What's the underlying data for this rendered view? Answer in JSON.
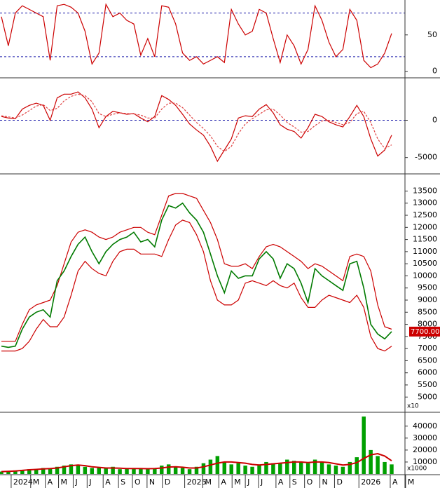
{
  "chart_data": [
    {
      "type": "line",
      "xlim": [
        0,
        56
      ],
      "ylim": [
        -8,
        96
      ],
      "yticks": [
        0,
        50
      ],
      "levels": [
        20,
        80
      ],
      "level_color": "#1a1aaa",
      "series": [
        {
          "color": "#cc0000",
          "values": [
            75,
            35,
            80,
            90,
            85,
            80,
            75,
            15,
            90,
            92,
            88,
            80,
            55,
            10,
            25,
            92,
            75,
            80,
            70,
            65,
            22,
            45,
            20,
            90,
            88,
            65,
            25,
            15,
            20,
            10,
            15,
            20,
            12,
            85,
            65,
            50,
            55,
            85,
            80,
            45,
            12,
            50,
            35,
            10,
            30,
            90,
            70,
            40,
            20,
            30,
            85,
            70,
            15,
            5,
            10,
            25,
            52
          ]
        }
      ]
    },
    {
      "type": "line",
      "xlim": [
        0,
        56
      ],
      "ylim": [
        -7100,
        5600
      ],
      "yticks": [
        0,
        -5000
      ],
      "levels": [
        0
      ],
      "level_color": "#1a1aaa",
      "series": [
        {
          "color": "#cc0000",
          "values": [
            500,
            300,
            200,
            1500,
            2000,
            2300,
            2000,
            0,
            3000,
            3500,
            3500,
            3800,
            3000,
            1500,
            -1000,
            500,
            1200,
            1000,
            800,
            900,
            300,
            -200,
            500,
            3300,
            2800,
            2000,
            800,
            -500,
            -1300,
            -2000,
            -3500,
            -5500,
            -4000,
            -2500,
            300,
            600,
            500,
            1500,
            2100,
            1000,
            -600,
            -1200,
            -1500,
            -2400,
            -1000,
            800,
            500,
            -200,
            -600,
            -900,
            500,
            2000,
            500,
            -2500,
            -4800,
            -4000,
            -2000
          ]
        },
        {
          "color": "#e04040",
          "dash": true,
          "values": [
            600,
            450,
            300,
            700,
            1300,
            1900,
            2100,
            1300,
            1600,
            2600,
            3200,
            3500,
            3300,
            2500,
            900,
            500,
            800,
            1000,
            900,
            850,
            700,
            300,
            300,
            1500,
            2300,
            2300,
            1700,
            700,
            -300,
            -1100,
            -2100,
            -3500,
            -4200,
            -3500,
            -1800,
            -500,
            200,
            800,
            1400,
            1500,
            700,
            -300,
            -900,
            -1600,
            -1500,
            -700,
            -100,
            0,
            -300,
            -600,
            -300,
            900,
            1200,
            -300,
            -2500,
            -3800,
            -3300
          ]
        }
      ]
    },
    {
      "type": "line",
      "xlim": [
        0,
        56
      ],
      "ylim": [
        4400,
        14150
      ],
      "yticks": [
        5000,
        5500,
        6000,
        6500,
        7000,
        7500,
        8000,
        8500,
        9000,
        9500,
        10000,
        10500,
        11000,
        11500,
        12000,
        12500,
        13000,
        13500
      ],
      "axis_note": "x10",
      "last_label": {
        "value": 7700,
        "label": "7700.00",
        "color": "#cc0000"
      },
      "series": [
        {
          "color": "#cc0000",
          "values": [
            7300,
            7300,
            7300,
            8000,
            8600,
            8800,
            8900,
            9000,
            9600,
            10500,
            11400,
            11800,
            11900,
            11800,
            11600,
            11500,
            11600,
            11800,
            11900,
            12000,
            12000,
            11800,
            11700,
            12500,
            13300,
            13400,
            13400,
            13300,
            13200,
            12700,
            12200,
            11500,
            10500,
            10400,
            10400,
            10500,
            10300,
            10800,
            11200,
            11300,
            11200,
            11000,
            10800,
            10600,
            10300,
            10500,
            10400,
            10200,
            10000,
            9800,
            10800,
            10900,
            10800,
            10200,
            8800,
            7900,
            7800
          ]
        },
        {
          "color": "#cc0000",
          "values": [
            6900,
            6900,
            6900,
            7000,
            7300,
            7800,
            8200,
            7900,
            7900,
            8300,
            9200,
            10200,
            10600,
            10300,
            10100,
            10000,
            10600,
            11000,
            11100,
            11100,
            10900,
            10900,
            10900,
            10800,
            11500,
            12100,
            12300,
            12200,
            11700,
            11000,
            9800,
            9000,
            8800,
            8800,
            9000,
            9700,
            9800,
            9700,
            9600,
            9800,
            9600,
            9500,
            9700,
            9100,
            8700,
            8700,
            9000,
            9200,
            9100,
            9000,
            8900,
            9200,
            8700,
            7500,
            7000,
            6900,
            7100
          ]
        },
        {
          "color": "#007a00",
          "width": 1.6,
          "values": [
            7100,
            7050,
            7100,
            7800,
            8300,
            8500,
            8600,
            8300,
            9800,
            10200,
            10800,
            11300,
            11600,
            11000,
            10500,
            11000,
            11300,
            11500,
            11600,
            11800,
            11400,
            11500,
            11200,
            12300,
            12900,
            12800,
            13000,
            12600,
            12300,
            11800,
            10900,
            10000,
            9300,
            10200,
            9900,
            10000,
            10000,
            10700,
            11000,
            10700,
            9900,
            10500,
            10300,
            9700,
            8900,
            10300,
            10000,
            9800,
            9600,
            9400,
            10500,
            10600,
            9500,
            8000,
            7600,
            7400,
            7700
          ]
        }
      ]
    },
    {
      "type": "bar",
      "xlim": [
        0,
        56
      ],
      "ylim": [
        0,
        51000
      ],
      "yticks": [
        10000,
        20000,
        30000,
        40000
      ],
      "axis_note": "x1000",
      "series": [
        {
          "color": "#00a000",
          "bars": true,
          "values": [
            2000,
            2500,
            3000,
            3500,
            4000,
            4000,
            5000,
            4500,
            6000,
            7000,
            8000,
            7000,
            6000,
            5000,
            5500,
            5000,
            6000,
            4000,
            4500,
            5000,
            4500,
            4000,
            5000,
            7000,
            8000,
            6000,
            5000,
            4000,
            6000,
            9000,
            12000,
            15000,
            10000,
            8000,
            9000,
            7000,
            6000,
            8000,
            10000,
            9000,
            9000,
            12000,
            11000,
            10000,
            9000,
            12000,
            10000,
            8000,
            7000,
            6000,
            10000,
            14000,
            48000,
            20000,
            15000,
            10000,
            8000
          ]
        },
        {
          "color": "#cc0000",
          "width": 2,
          "values": [
            2000,
            2200,
            2500,
            3000,
            3500,
            3800,
            4200,
            4500,
            5000,
            6000,
            7000,
            7500,
            7000,
            6000,
            5500,
            5000,
            5000,
            4800,
            4600,
            4600,
            4500,
            4400,
            4500,
            5000,
            5800,
            6000,
            5600,
            5000,
            5000,
            6000,
            7500,
            9000,
            10000,
            10000,
            9500,
            9000,
            8000,
            7500,
            8000,
            8500,
            9000,
            9500,
            10000,
            10000,
            9500,
            10000,
            10000,
            9500,
            8500,
            7500,
            8000,
            9500,
            13000,
            16000,
            17000,
            15000,
            11000
          ]
        }
      ],
      "xticks": [
        {
          "value": 1.4,
          "label": "2024"
        },
        {
          "value": 4.2,
          "label": "M"
        },
        {
          "value": 6.3,
          "label": "A"
        },
        {
          "value": 8.2,
          "label": "M"
        },
        {
          "value": 10.3,
          "label": "J"
        },
        {
          "value": 12.3,
          "label": "J"
        },
        {
          "value": 14.6,
          "label": "A"
        },
        {
          "value": 16.8,
          "label": "S"
        },
        {
          "value": 18.8,
          "label": "O"
        },
        {
          "value": 20.9,
          "label": "N"
        },
        {
          "value": 23.1,
          "label": "D"
        },
        {
          "value": 26.3,
          "label": "2025"
        },
        {
          "value": 28.9,
          "label": "M"
        },
        {
          "value": 31.2,
          "label": "A"
        },
        {
          "value": 33.1,
          "label": "M"
        },
        {
          "value": 35,
          "label": "J"
        },
        {
          "value": 36.9,
          "label": "J"
        },
        {
          "value": 39.4,
          "label": "A"
        },
        {
          "value": 41.4,
          "label": "S"
        },
        {
          "value": 43.5,
          "label": "O"
        },
        {
          "value": 45.7,
          "label": "N"
        },
        {
          "value": 47.8,
          "label": "D"
        },
        {
          "value": 51.3,
          "label": "2026"
        },
        {
          "value": 55.8,
          "label": "A"
        },
        {
          "value": 58,
          "label": "M"
        }
      ]
    }
  ]
}
